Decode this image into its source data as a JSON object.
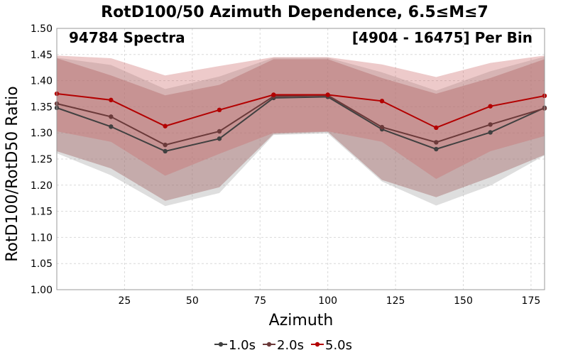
{
  "chart_data": {
    "type": "line",
    "title": "RotD100/50 Azimuth Dependence, 6.5≤M≤7",
    "xlabel": "Azimuth",
    "ylabel": "RotD100/RotD50 Ratio",
    "xlim": [
      0,
      180
    ],
    "ylim": [
      1.0,
      1.5
    ],
    "xticks": [
      25,
      50,
      75,
      100,
      125,
      150,
      175
    ],
    "yticks": [
      1.0,
      1.05,
      1.1,
      1.15,
      1.2,
      1.25,
      1.3,
      1.35,
      1.4,
      1.45,
      1.5
    ],
    "grid": true,
    "legend_position": "bottom-center",
    "annotations": {
      "left": "94784 Spectra",
      "right": "[4904 - 16475] Per Bin"
    },
    "x": [
      0,
      20,
      40,
      60,
      80,
      100,
      120,
      140,
      160,
      180
    ],
    "series": [
      {
        "name": "1.0s",
        "color": "#404040",
        "band_color": "#a0a0a0",
        "values": [
          1.348,
          1.312,
          1.265,
          1.289,
          1.367,
          1.369,
          1.307,
          1.269,
          1.301,
          1.348
        ],
        "upper": [
          1.444,
          1.43,
          1.384,
          1.408,
          1.444,
          1.444,
          1.416,
          1.381,
          1.418,
          1.446
        ],
        "lower": [
          1.261,
          1.219,
          1.16,
          1.185,
          1.296,
          1.299,
          1.207,
          1.161,
          1.199,
          1.257
        ]
      },
      {
        "name": "2.0s",
        "color": "#6b3a3a",
        "band_color": "#a06060",
        "values": [
          1.356,
          1.331,
          1.277,
          1.303,
          1.37,
          1.372,
          1.311,
          1.282,
          1.316,
          1.347
        ],
        "upper": [
          1.443,
          1.41,
          1.372,
          1.392,
          1.441,
          1.441,
          1.405,
          1.375,
          1.405,
          1.441
        ],
        "lower": [
          1.265,
          1.232,
          1.17,
          1.196,
          1.298,
          1.302,
          1.21,
          1.177,
          1.215,
          1.258
        ]
      },
      {
        "name": "5.0s",
        "color": "#b30000",
        "band_color": "#cc6666",
        "values": [
          1.375,
          1.363,
          1.313,
          1.344,
          1.373,
          1.373,
          1.361,
          1.31,
          1.351,
          1.371
        ],
        "upper": [
          1.448,
          1.443,
          1.41,
          1.428,
          1.445,
          1.445,
          1.431,
          1.407,
          1.434,
          1.448
        ],
        "lower": [
          1.303,
          1.283,
          1.218,
          1.26,
          1.3,
          1.303,
          1.283,
          1.212,
          1.265,
          1.294
        ]
      }
    ]
  }
}
